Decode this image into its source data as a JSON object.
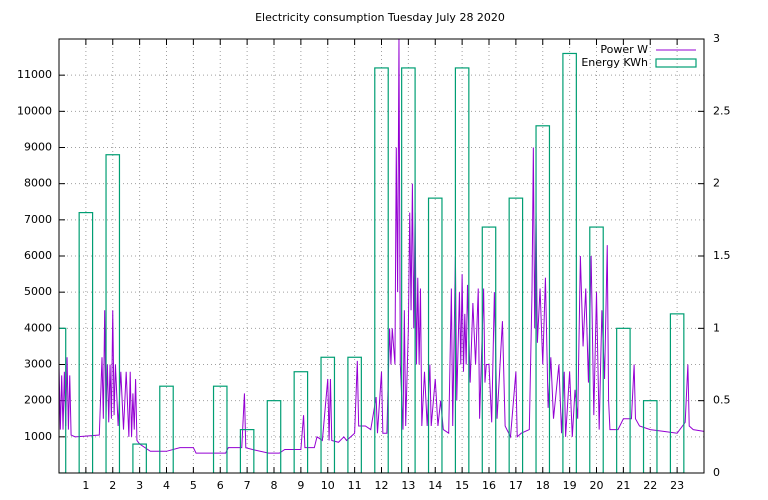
{
  "chart_data": {
    "type": "line",
    "title": "Electricity consumption Tuesday July 28 2020",
    "xlim": [
      0,
      24
    ],
    "xticks": [
      1,
      2,
      3,
      4,
      5,
      6,
      7,
      8,
      9,
      10,
      11,
      12,
      13,
      14,
      15,
      16,
      17,
      18,
      19,
      20,
      21,
      22,
      23
    ],
    "ylim": [
      0,
      12000
    ],
    "yticks": [
      1000,
      2000,
      3000,
      4000,
      5000,
      6000,
      7000,
      8000,
      9000,
      10000,
      11000
    ],
    "y2lim": [
      0,
      3
    ],
    "y2ticks": [
      0,
      0.5,
      1,
      1.5,
      2,
      2.5,
      3
    ],
    "grid": true,
    "legend": "top-right",
    "series": [
      {
        "name": "Power W",
        "color": "#9400d3",
        "type": "line",
        "x": [
          0,
          0.05,
          0.1,
          0.15,
          0.2,
          0.25,
          0.3,
          0.35,
          0.4,
          0.45,
          0.6,
          1.0,
          1.5,
          1.6,
          1.65,
          1.7,
          1.75,
          1.8,
          1.85,
          1.9,
          1.95,
          2.0,
          2.05,
          2.1,
          2.2,
          2.3,
          2.4,
          2.5,
          2.6,
          2.65,
          2.7,
          2.75,
          2.8,
          2.85,
          2.9,
          3.0,
          3.4,
          4.0,
          4.5,
          5.0,
          5.1,
          6.0,
          6.2,
          6.3,
          6.8,
          6.9,
          6.95,
          7.2,
          7.8,
          8.2,
          8.4,
          9.0,
          9.1,
          9.15,
          9.5,
          9.6,
          9.8,
          10.0,
          10.05,
          10.1,
          10.15,
          10.4,
          10.6,
          10.7,
          11.0,
          11.1,
          11.15,
          11.4,
          11.6,
          11.8,
          11.85,
          12.0,
          12.05,
          12.2,
          12.3,
          12.35,
          12.4,
          12.5,
          12.55,
          12.6,
          12.65,
          12.7,
          12.8,
          12.85,
          12.9,
          13.0,
          13.05,
          13.1,
          13.15,
          13.2,
          13.25,
          13.3,
          13.35,
          13.4,
          13.45,
          13.5,
          13.6,
          13.7,
          13.8,
          13.85,
          14.0,
          14.1,
          14.2,
          14.3,
          14.5,
          14.6,
          14.65,
          14.75,
          14.8,
          14.9,
          14.95,
          15.0,
          15.05,
          15.1,
          15.15,
          15.2,
          15.3,
          15.4,
          15.5,
          15.6,
          15.65,
          15.8,
          15.85,
          15.9,
          16.0,
          16.1,
          16.2,
          16.3,
          16.5,
          16.6,
          16.8,
          17.0,
          17.05,
          17.2,
          17.5,
          17.6,
          17.65,
          17.7,
          17.75,
          17.8,
          17.9,
          18.0,
          18.1,
          18.2,
          18.3,
          18.4,
          18.6,
          18.7,
          18.8,
          18.85,
          19.0,
          19.1,
          19.2,
          19.3,
          19.4,
          19.5,
          19.6,
          19.7,
          19.8,
          19.9,
          20.0,
          20.1,
          20.2,
          20.3,
          20.4,
          20.45,
          20.5,
          20.8,
          21.0,
          21.3,
          21.4,
          21.45,
          21.6,
          22.0,
          22.5,
          23.0,
          23.3,
          23.4,
          23.45,
          23.6,
          24.0
        ],
        "values": [
          3000,
          1200,
          2700,
          1200,
          2800,
          1300,
          3200,
          1200,
          2700,
          1050,
          1000,
          1020,
          1050,
          3200,
          1500,
          4500,
          1600,
          3000,
          1400,
          3000,
          1500,
          4500,
          1600,
          3000,
          1300,
          2800,
          1200,
          2800,
          1000,
          2800,
          1000,
          2200,
          1200,
          2600,
          900,
          800,
          600,
          600,
          700,
          700,
          550,
          550,
          550,
          700,
          700,
          2200,
          700,
          650,
          550,
          550,
          650,
          650,
          1600,
          700,
          700,
          1000,
          900,
          2600,
          900,
          2600,
          900,
          850,
          1000,
          900,
          1100,
          3100,
          1300,
          1300,
          1200,
          2100,
          1100,
          2800,
          1100,
          1100,
          4000,
          3000,
          4000,
          3000,
          9000,
          5000,
          12000,
          3000,
          1200,
          4500,
          1300,
          4000,
          7200,
          4500,
          8000,
          4000,
          7200,
          3000,
          5400,
          3000,
          5100,
          1300,
          2800,
          1300,
          3000,
          1300,
          2600,
          1300,
          2000,
          1200,
          1100,
          5100,
          1300,
          6000,
          2000,
          5000,
          3000,
          5500,
          2800,
          4400,
          3000,
          5200,
          2500,
          4700,
          3000,
          5100,
          1500,
          5100,
          2500,
          3000,
          3000,
          1400,
          5000,
          1500,
          4200,
          1300,
          1000,
          2800,
          1000,
          1100,
          1200,
          5000,
          9000,
          4000,
          7200,
          3600,
          5100,
          3000,
          5400,
          1800,
          3200,
          1500,
          3000,
          1100,
          2800,
          1000,
          2800,
          1000,
          2300,
          1500,
          6000,
          3500,
          5100,
          2500,
          6000,
          1600,
          5000,
          1200,
          4500,
          2600,
          6300,
          2000,
          1200,
          1200,
          1500,
          1500,
          3000,
          1500,
          1300,
          1200,
          1150,
          1100,
          1400,
          3000,
          1300,
          1200,
          1150
        ]
      },
      {
        "name": "Energy KWh",
        "color": "#009e73",
        "type": "boxes",
        "axis": "y2",
        "width": 0.5,
        "x": [
          0,
          1,
          2,
          3,
          4,
          6,
          7,
          8,
          9,
          10,
          11,
          12,
          13,
          14,
          15,
          16,
          17,
          18,
          19,
          20,
          21,
          22,
          23
        ],
        "values": [
          1.0,
          1.8,
          2.2,
          0.2,
          0.6,
          0.6,
          0.3,
          0.5,
          0.7,
          0.8,
          0.8,
          2.8,
          2.8,
          1.9,
          2.8,
          1.7,
          1.9,
          2.4,
          2.9,
          1.7,
          1.0,
          0.5,
          1.1
        ]
      }
    ]
  }
}
